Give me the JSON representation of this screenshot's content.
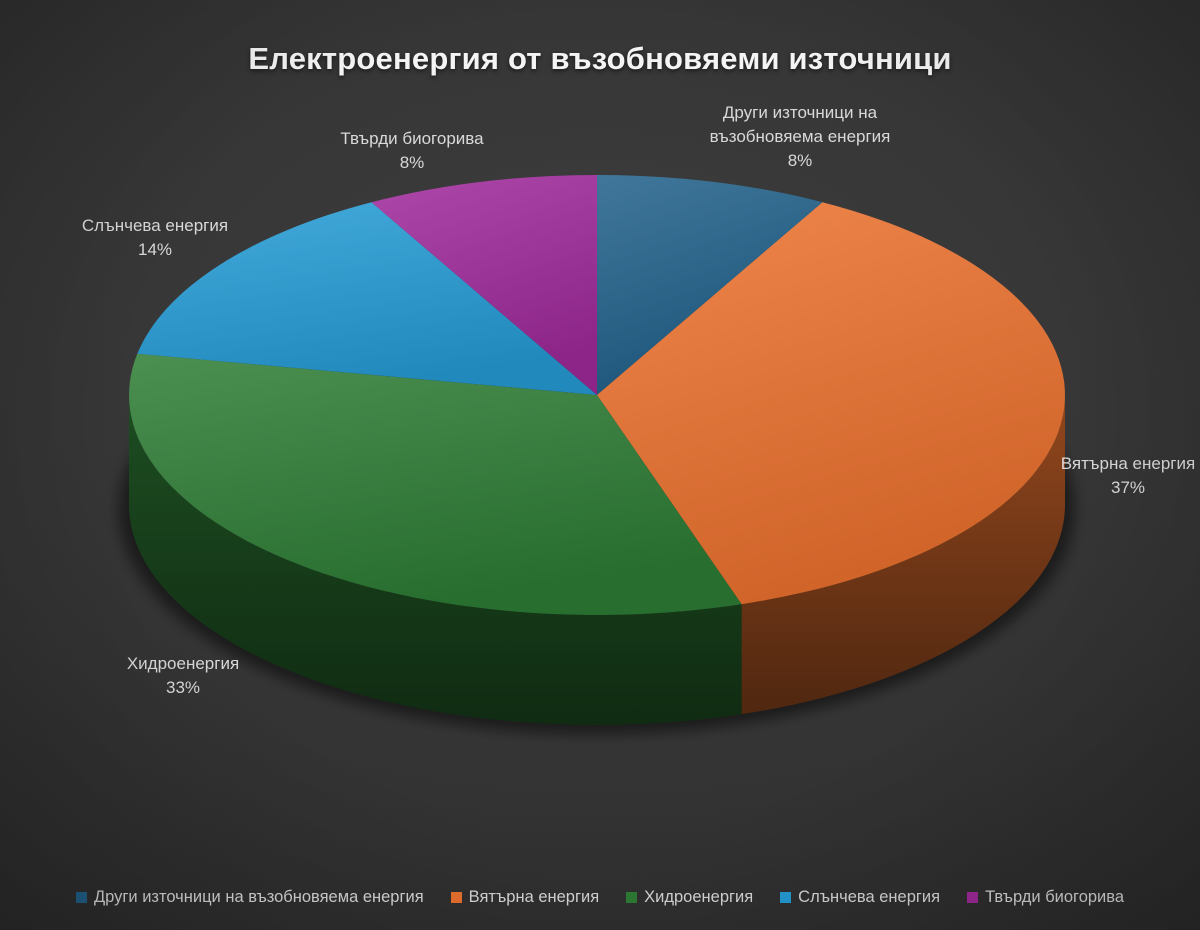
{
  "title": "Електроенергия от възобновяеми източници",
  "chart_data": {
    "type": "pie",
    "title": "Електроенергия от възобновяеми източници",
    "labels": [
      "Други източници на възобновяема енергия",
      "Вятърна енергия",
      "Хидроенергия",
      "Слънчева енергия",
      "Твърди биогорива"
    ],
    "values": [
      8,
      37,
      33,
      14,
      8
    ],
    "unit": "%",
    "colors": [
      "#21618B",
      "#EC722F",
      "#2E7D35",
      "#259CD6",
      "#A02A9C"
    ],
    "start_angle_deg": 0,
    "direction": "clockwise",
    "effect_3d": true,
    "legend_position": "bottom",
    "background_color": "#333333",
    "text_color": "#D9D9D9"
  },
  "callouts": {
    "others": {
      "label": "Други източници на възобновяема енергия",
      "value": "8%"
    },
    "biofuels": {
      "label": "Твърди биогорива",
      "value": "8%"
    },
    "solar": {
      "label": "Слънчева енергия",
      "value": "14%"
    },
    "wind": {
      "label": "Вятърна енергия",
      "value": "37%"
    },
    "hydro": {
      "label": "Хидроенергия",
      "value": "33%"
    }
  },
  "legend": {
    "items": [
      {
        "label": "Други източници на възобновяема енергия"
      },
      {
        "label": "Вятърна енергия"
      },
      {
        "label": "Хидроенергия"
      },
      {
        "label": "Слънчева енергия"
      },
      {
        "label": "Твърди биогорива"
      }
    ]
  }
}
